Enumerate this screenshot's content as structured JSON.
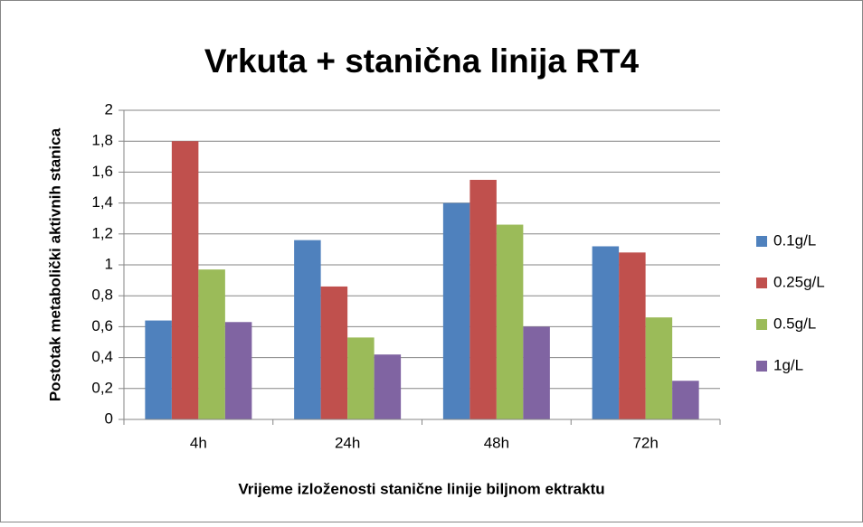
{
  "chart_data": {
    "type": "bar",
    "title": "Vrkuta + stanična linija RT4",
    "x_label": "Vrijeme izloženosti stanične linije biljnom ektraktu",
    "y_label": "Postotak metabolički aktivnih stanica",
    "categories": [
      "4h",
      "24h",
      "48h",
      "72h"
    ],
    "series": [
      {
        "name": "0.1g/L",
        "color": "#4f81bd",
        "values": [
          0.64,
          1.16,
          1.4,
          1.12
        ]
      },
      {
        "name": "0.25g/L",
        "color": "#c0504d",
        "values": [
          1.8,
          0.86,
          1.55,
          1.08
        ]
      },
      {
        "name": "0.5g/L",
        "color": "#9bbb59",
        "values": [
          0.97,
          0.53,
          1.26,
          0.66
        ]
      },
      {
        "name": "1g/L",
        "color": "#8064a2",
        "values": [
          0.63,
          0.42,
          0.6,
          0.25
        ]
      }
    ],
    "ylim": [
      0,
      2
    ],
    "yticks": [
      0,
      {
        "value": 0.2,
        "label": "0,2"
      },
      {
        "value": 0.4,
        "label": "0,4"
      },
      {
        "value": 0.6,
        "label": "0,6"
      },
      {
        "value": 0.8,
        "label": "0,8"
      },
      1,
      {
        "value": 1.2,
        "label": "1,2"
      },
      {
        "value": 1.4,
        "label": "1,4"
      },
      {
        "value": 1.6,
        "label": "1,6"
      },
      {
        "value": 1.8,
        "label": "1,8"
      },
      2
    ],
    "grid": true,
    "legend": "right"
  }
}
